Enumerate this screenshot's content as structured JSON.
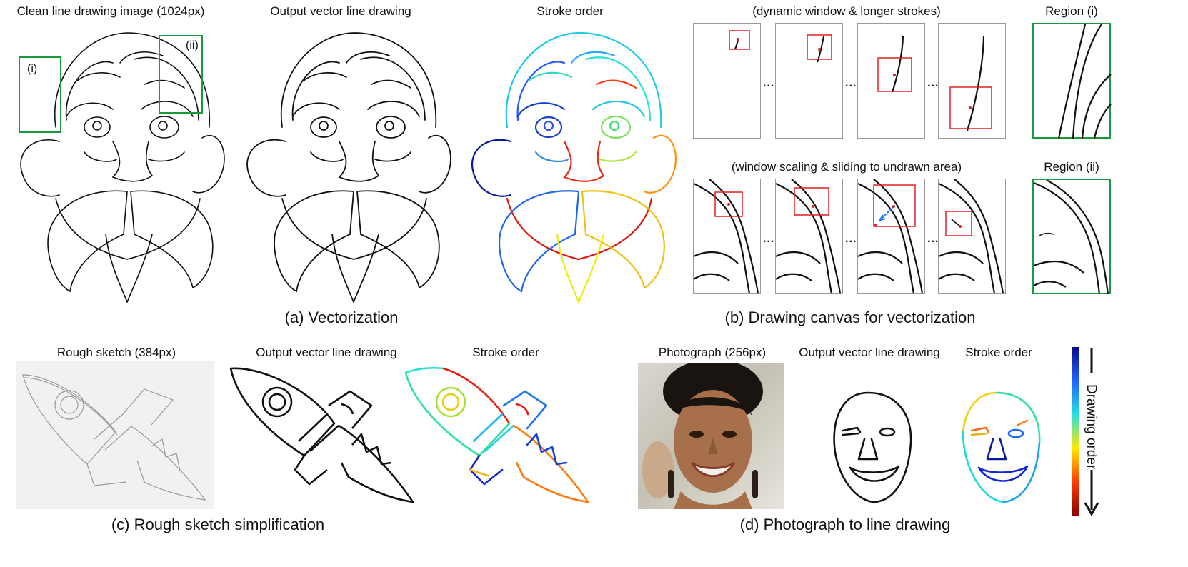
{
  "panel_a": {
    "label_input": "Clean line drawing image (1024px)",
    "label_output": "Output vector line drawing",
    "label_order": "Stroke order",
    "region_i_tag": "(i)",
    "region_ii_tag": "(ii)",
    "caption": "(a) Vectorization"
  },
  "panel_b": {
    "row1_label": "(dynamic window & longer strokes)",
    "row2_label": "(window scaling & sliding to undrawn area)",
    "region_i_label": "Region (i)",
    "region_ii_label": "Region (ii)",
    "ellipsis": "...",
    "caption": "(b) Drawing canvas for vectorization"
  },
  "panel_c": {
    "label_input": "Rough sketch (384px)",
    "label_output": "Output vector line drawing",
    "label_order": "Stroke order",
    "caption": "(c) Rough sketch simplification"
  },
  "panel_d": {
    "label_input": "Photograph (256px)",
    "label_output": "Output vector line drawing",
    "label_order": "Stroke order",
    "caption": "(d) Photograph to line drawing"
  },
  "colorbar": {
    "label": "Drawing order",
    "colors": [
      "#0a0a8c",
      "#1e64ff",
      "#28e0e0",
      "#ffe800",
      "#ff3c00",
      "#8c0000"
    ]
  },
  "colors": {
    "window": "#e02020",
    "region": "#1a9a3a",
    "slide_arrow": "#1e78ff"
  }
}
